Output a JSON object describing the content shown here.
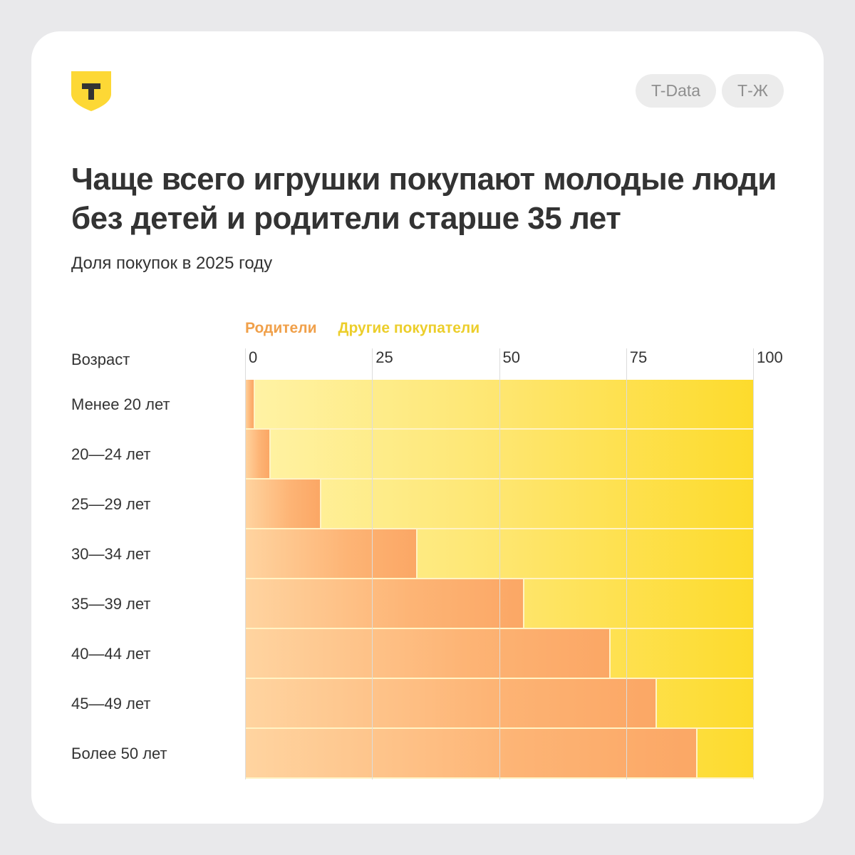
{
  "brand": {
    "logo_letter": "Т",
    "logo_color": "#fdd835",
    "pills": [
      "T-Data",
      "Т-Ж"
    ]
  },
  "header": {
    "title": "Чаще всего игрушки покупают молодые люди без детей  и родители старше 35 лет",
    "subtitle": "Доля покупок в 2025 году"
  },
  "legend": {
    "parents": "Родители",
    "others": "Другие покупатели"
  },
  "axis": {
    "title": "Возраст",
    "ticks": [
      "0",
      "25",
      "50",
      "75",
      "100"
    ]
  },
  "rows": [
    {
      "label": "Менее 20 лет",
      "parents": 2
    },
    {
      "label": "20—24 лет",
      "parents": 5
    },
    {
      "label": "25—29 лет",
      "parents": 15
    },
    {
      "label": "30—34 лет",
      "parents": 34
    },
    {
      "label": "35—39 лет",
      "parents": 55
    },
    {
      "label": "40—44 лет",
      "parents": 72
    },
    {
      "label": "45—49 лет",
      "parents": 81
    },
    {
      "label": "Более 50 лет",
      "parents": 89
    }
  ],
  "chart_data": {
    "type": "bar",
    "orientation": "horizontal",
    "stacked": true,
    "percent_stacked": true,
    "title": "Чаще всего игрушки покупают молодые люди без детей  и родители старше 35 лет",
    "subtitle": "Доля покупок в 2025 году",
    "ylabel": "Возраст",
    "xlabel": "",
    "xlim": [
      0,
      100
    ],
    "xticks": [
      0,
      25,
      50,
      75,
      100
    ],
    "grid": true,
    "legend_position": "top",
    "categories": [
      "Менее 20 лет",
      "20—24 лет",
      "25—29 лет",
      "30—34 лет",
      "35—39 лет",
      "40—44 лет",
      "45—49 лет",
      "Более 50 лет"
    ],
    "series": [
      {
        "name": "Родители",
        "color": "#fba765",
        "values": [
          2,
          5,
          15,
          34,
          55,
          72,
          81,
          89
        ]
      },
      {
        "name": "Другие покупатели",
        "color": "#fddb2c",
        "values": [
          98,
          95,
          85,
          66,
          45,
          28,
          19,
          11
        ]
      }
    ]
  }
}
